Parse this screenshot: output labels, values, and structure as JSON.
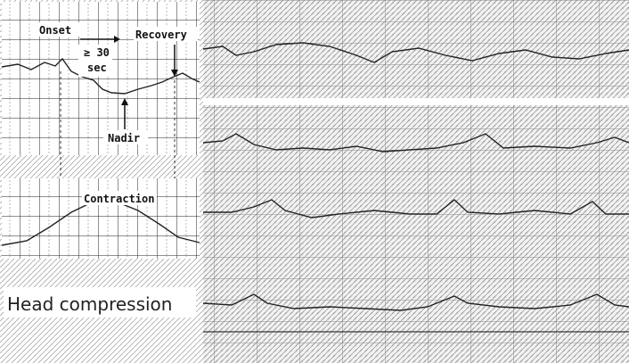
{
  "labels": {
    "onset": "Onset",
    "duration": [
      "≥ 30",
      "sec"
    ],
    "recovery": "Recovery",
    "nadir": "Nadir",
    "contraction": "Contraction"
  },
  "caption": "Head compression"
}
